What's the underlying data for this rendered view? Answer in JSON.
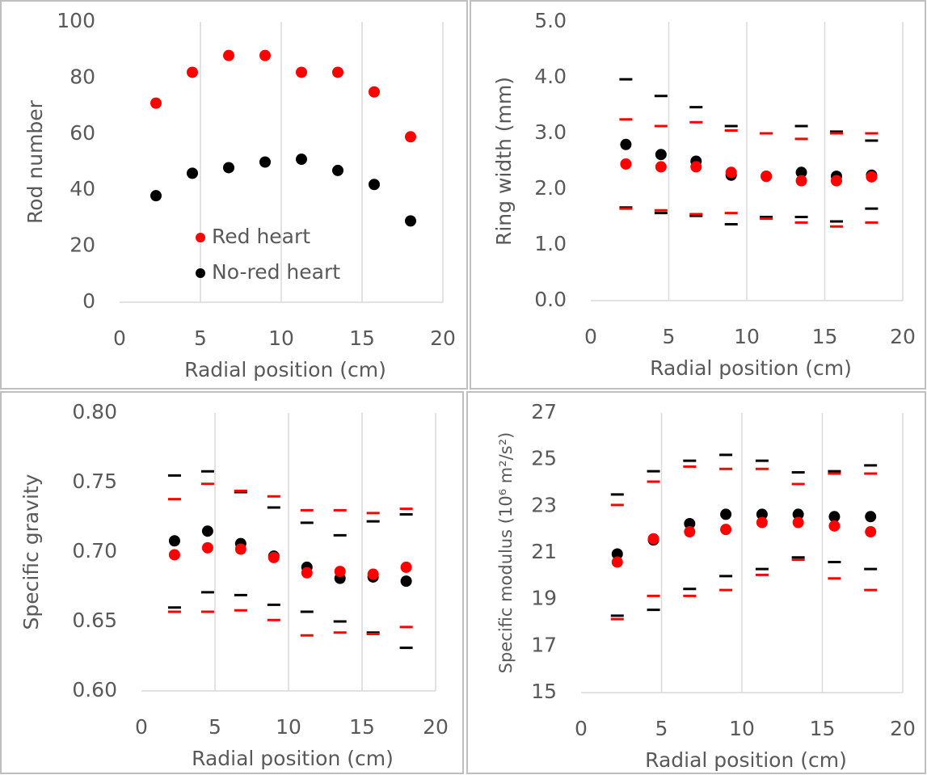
{
  "chart_data": [
    {
      "type": "scatter",
      "ylabel": "Rod number",
      "xlabel": "Radial position (cm)",
      "x": [
        2.25,
        4.5,
        6.75,
        9,
        11.25,
        13.5,
        15.75,
        18
      ],
      "series": [
        {
          "name": "Red heart",
          "color": "#ff0000",
          "values": [
            71,
            82,
            88,
            88,
            82,
            82,
            75,
            59
          ]
        },
        {
          "name": "No-red heart",
          "color": "#000000",
          "values": [
            38,
            46,
            48,
            50,
            51,
            47,
            42,
            29
          ]
        }
      ],
      "xlim": [
        0,
        20
      ],
      "xticks": [
        0,
        5,
        10,
        15,
        20
      ],
      "ylim": [
        0,
        100
      ],
      "yticks": [
        0,
        20,
        40,
        60,
        80,
        100
      ],
      "grid": "x",
      "legend": "lower-left"
    },
    {
      "type": "scatter",
      "ylabel": "Ring width (mm)",
      "xlabel": "Radial position (cm)",
      "x": [
        2.25,
        4.5,
        6.75,
        9,
        11.25,
        13.5,
        15.75,
        18
      ],
      "series": [
        {
          "color": "#ff0000",
          "values": [
            2.45,
            2.4,
            2.4,
            2.3,
            2.23,
            2.15,
            2.15,
            2.22
          ],
          "upper": [
            3.25,
            3.13,
            3.2,
            3.05,
            3.0,
            2.9,
            3.0,
            3.0
          ],
          "lower": [
            1.65,
            1.62,
            1.55,
            1.57,
            1.47,
            1.4,
            1.33,
            1.4
          ]
        },
        {
          "color": "#000000",
          "values": [
            2.8,
            2.62,
            2.5,
            2.25,
            2.23,
            2.3,
            2.23,
            2.25
          ],
          "upper": [
            3.97,
            3.67,
            3.47,
            3.13,
            3.0,
            3.13,
            3.03,
            2.87
          ],
          "lower": [
            1.67,
            1.57,
            1.52,
            1.37,
            1.5,
            1.5,
            1.42,
            1.65
          ]
        }
      ],
      "xlim": [
        0,
        20
      ],
      "xticks": [
        0,
        5,
        10,
        15,
        20
      ],
      "ylim": [
        0,
        5
      ],
      "yticks": [
        {
          "value": 0,
          "label": "0.0"
        },
        {
          "value": 1,
          "label": "1.0"
        },
        {
          "value": 2,
          "label": "2.0"
        },
        {
          "value": 3,
          "label": "3.0"
        },
        {
          "value": 4,
          "label": "4.0"
        },
        {
          "value": 5,
          "label": "5.0"
        }
      ],
      "grid": "x"
    },
    {
      "type": "scatter",
      "ylabel": "Specific gravity",
      "xlabel": "Radial position (cm)",
      "x": [
        2.25,
        4.5,
        6.75,
        9,
        11.25,
        13.5,
        15.75,
        18
      ],
      "series": [
        {
          "color": "#ff0000",
          "values": [
            0.698,
            0.703,
            0.702,
            0.696,
            0.685,
            0.686,
            0.684,
            0.689
          ],
          "upper": [
            0.738,
            0.749,
            0.744,
            0.74,
            0.73,
            0.73,
            0.728,
            0.731
          ],
          "lower": [
            0.657,
            0.657,
            0.658,
            0.651,
            0.64,
            0.642,
            0.641,
            0.646
          ]
        },
        {
          "color": "#000000",
          "values": [
            0.708,
            0.715,
            0.706,
            0.697,
            0.689,
            0.681,
            0.682,
            0.679
          ],
          "upper": [
            0.755,
            0.758,
            0.743,
            0.732,
            0.721,
            0.712,
            0.722,
            0.727
          ],
          "lower": [
            0.66,
            0.671,
            0.669,
            0.662,
            0.657,
            0.65,
            0.642,
            0.631
          ]
        }
      ],
      "xlim": [
        0,
        20
      ],
      "xticks": [
        0,
        5,
        10,
        15,
        20
      ],
      "ylim": [
        0.6,
        0.8
      ],
      "yticks": [
        {
          "value": 0.6,
          "label": "0.60"
        },
        0.65,
        {
          "value": 0.7,
          "label": "0.70"
        },
        0.75,
        {
          "value": 0.8,
          "label": "0.80"
        }
      ],
      "grid": "x"
    },
    {
      "type": "scatter",
      "ylabel": "Specific modulus (10⁶ m²/s²)",
      "xlabel": "Radial position (cm)",
      "x": [
        2.25,
        4.5,
        6.75,
        9,
        11.25,
        13.5,
        15.75,
        18
      ],
      "series": [
        {
          "color": "#ff0000",
          "values": [
            20.6,
            21.6,
            21.9,
            22.0,
            22.3,
            22.3,
            22.15,
            21.9
          ],
          "upper": [
            23.05,
            24.05,
            24.7,
            24.6,
            24.6,
            23.95,
            24.4,
            24.4
          ],
          "lower": [
            18.15,
            19.15,
            19.15,
            19.4,
            20.05,
            20.7,
            19.9,
            19.4
          ]
        },
        {
          "color": "#000000",
          "values": [
            20.95,
            21.55,
            22.25,
            22.65,
            22.65,
            22.65,
            22.55,
            22.55
          ],
          "upper": [
            23.5,
            24.5,
            24.95,
            25.2,
            24.95,
            24.45,
            24.5,
            24.75
          ],
          "lower": [
            18.3,
            18.55,
            19.45,
            20.0,
            20.3,
            20.8,
            20.6,
            20.3
          ]
        }
      ],
      "xlim": [
        0,
        20
      ],
      "xticks": [
        0,
        5,
        10,
        15,
        20
      ],
      "ylim": [
        15,
        27
      ],
      "yticks": [
        15,
        17,
        19,
        21,
        23,
        25,
        27
      ],
      "grid": "x"
    }
  ]
}
